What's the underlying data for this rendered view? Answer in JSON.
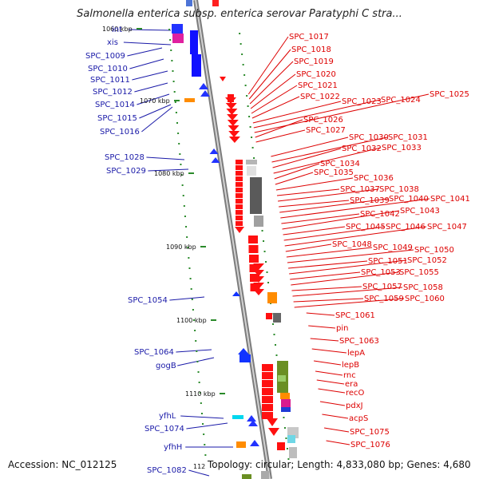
{
  "title": "Salmonella enterica subsp. enterica serovar Paratyphi C stra...",
  "accession": "Accession: NC_012125",
  "topology": "Topology: circular; Length: 4,833,080 bp; Genes: 4,680",
  "partial_tick": "112",
  "colors": {
    "left_labels": "#1a1aa8",
    "right_labels": "#dd0000",
    "backbone": "#9a9a9a",
    "ticks": "#2a8a2a"
  },
  "kbp_ticks": [
    "1060 kbp",
    "1070 kbp",
    "1080 kbp",
    "1090 kbp",
    "1100 kbp",
    "1110 kbp"
  ],
  "left_genes": [
    "int",
    "xis",
    "SPC_1009",
    "SPC_1010",
    "SPC_1011",
    "SPC_1012",
    "SPC_1014",
    "SPC_1015",
    "SPC_1016",
    "SPC_1028",
    "SPC_1029",
    "SPC_1054",
    "SPC_1064",
    "gogB",
    "yfhL",
    "SPC_1074",
    "yfhH",
    "SPC_1082"
  ],
  "right_genes": [
    "SPC_1017",
    "SPC_1018",
    "SPC_1019",
    "SPC_1020",
    "SPC_1021",
    "SPC_1022",
    "SPC_1023",
    "SPC_1024",
    "SPC_1025",
    "SPC_1026",
    "SPC_1027",
    "SPC_1030",
    "SPC_1031",
    "SPC_1032",
    "SPC_1033",
    "SPC_1034",
    "SPC_1035",
    "SPC_1036",
    "SPC_1037",
    "SPC_1038",
    "SPC_1039",
    "SPC_1040",
    "SPC_1041",
    "SPC_1042",
    "SPC_1043",
    "SPC_1045",
    "SPC_1046",
    "SPC_1047",
    "SPC_1048",
    "SPC_1049",
    "SPC_1050",
    "SPC_1051",
    "SPC_1052",
    "SPC_1053",
    "SPC_1055",
    "SPC_1057",
    "SPC_1058",
    "SPC_1059",
    "SPC_1060",
    "SPC_1061",
    "pin",
    "SPC_1063",
    "lepA",
    "lepB",
    "rnc",
    "era",
    "recO",
    "pdxJ",
    "acpS",
    "SPC_1075",
    "SPC_1076"
  ]
}
